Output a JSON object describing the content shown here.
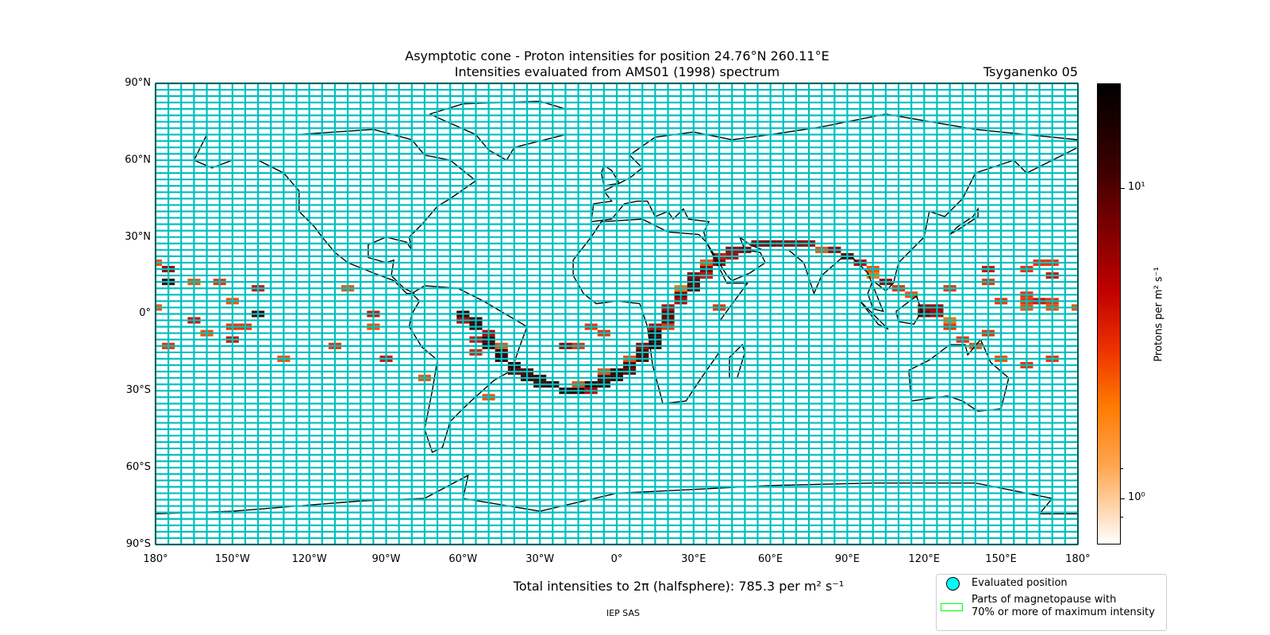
{
  "title_line1": "Asymptotic cone - Proton intensities for position 24.76°N 260.11°E",
  "title_line2": "Intensities evaluated from AMS01 (1998) spectrum",
  "model_label": "Tsyganenko 05",
  "y_ticks": [
    "90°N",
    "60°N",
    "30°N",
    "0°",
    "30°S",
    "60°S",
    "90°S"
  ],
  "x_ticks": [
    "180°",
    "150°W",
    "120°W",
    "90°W",
    "60°W",
    "30°W",
    "0°",
    "30°E",
    "60°E",
    "90°E",
    "120°E",
    "150°E",
    "180°"
  ],
  "colorbar": {
    "label": "Protons per m² s⁻¹",
    "tick_1": "10¹",
    "tick_0": "10⁰",
    "range": [
      0.71,
      21.8
    ],
    "scale": "log"
  },
  "footer_text": "Total intensities to 2π (halfsphere): 785.3 per m² s⁻¹",
  "credit": "IEP SAS",
  "legend": {
    "evaluated": "Evaluated position",
    "magnetopause_1": "Parts of magnetopause with",
    "magnetopause_2": "70% or more of maximum intensity"
  },
  "colors": {
    "grid": "#00bfbf",
    "legend_circle": "#00ffff",
    "legend_rect": "#00ff00"
  },
  "chart_data": {
    "type": "heatmap",
    "cell_size_deg": [
      5,
      2.5
    ],
    "xlim": [
      -180,
      180
    ],
    "ylim": [
      -90,
      90
    ],
    "cells": [
      [
        -175,
        17.5,
        6
      ],
      [
        -175,
        12.5,
        12
      ],
      [
        -175,
        -12.5,
        3
      ],
      [
        -180,
        20,
        2.5
      ],
      [
        -180,
        2.5,
        2.5
      ],
      [
        -165,
        12.5,
        2.5
      ],
      [
        -165,
        -2.5,
        4
      ],
      [
        -160,
        -7.5,
        2.5
      ],
      [
        -155,
        12.5,
        3
      ],
      [
        -150,
        5,
        2.5
      ],
      [
        -150,
        -5,
        3
      ],
      [
        -145,
        -5,
        3
      ],
      [
        -150,
        -10,
        4
      ],
      [
        -140,
        10,
        4
      ],
      [
        -140,
        0,
        12
      ],
      [
        -130,
        -17.5,
        2.5
      ],
      [
        -110,
        -12.5,
        3
      ],
      [
        -105,
        10,
        2.5
      ],
      [
        -95,
        0,
        4
      ],
      [
        -95,
        -5,
        2.5
      ],
      [
        -90,
        -17.5,
        4
      ],
      [
        -75,
        -25,
        2.5
      ],
      [
        -60,
        0,
        12
      ],
      [
        -60,
        -2.5,
        5
      ],
      [
        -55,
        -2.5,
        12
      ],
      [
        -55,
        -5,
        12
      ],
      [
        -55,
        -10,
        4
      ],
      [
        -55,
        -15,
        3.5
      ],
      [
        -50,
        -7.5,
        5
      ],
      [
        -50,
        -10,
        12
      ],
      [
        -50,
        -12.5,
        12
      ],
      [
        -45,
        -12.5,
        2.5
      ],
      [
        -45,
        -15,
        12
      ],
      [
        -45,
        -17.5,
        12
      ],
      [
        -50,
        -32.5,
        2.5
      ],
      [
        -40,
        -20,
        12
      ],
      [
        -40,
        -22.5,
        9
      ],
      [
        -35,
        -22.5,
        10
      ],
      [
        -35,
        -25,
        12
      ],
      [
        -30,
        -25,
        12
      ],
      [
        -30,
        -27.5,
        12
      ],
      [
        -25,
        -27.5,
        15
      ],
      [
        -20,
        -30,
        15
      ],
      [
        -15,
        -30,
        15
      ],
      [
        -10,
        -30,
        5
      ],
      [
        -15,
        -27.5,
        2.5
      ],
      [
        -10,
        -27.5,
        15
      ],
      [
        -5,
        -27.5,
        15
      ],
      [
        -5,
        -25,
        10
      ],
      [
        -5,
        -22.5,
        2.5
      ],
      [
        0,
        -22.5,
        12
      ],
      [
        0,
        -25,
        12
      ],
      [
        5,
        -22.5,
        9
      ],
      [
        5,
        -20,
        10
      ],
      [
        5,
        -17.5,
        2.5
      ],
      [
        10,
        -17.5,
        10
      ],
      [
        10,
        -15,
        10
      ],
      [
        10,
        -12.5,
        6
      ],
      [
        15,
        -12.5,
        12
      ],
      [
        15,
        -10,
        12
      ],
      [
        15,
        -7.5,
        12
      ],
      [
        15,
        -5,
        5
      ],
      [
        20,
        -5,
        3
      ],
      [
        20,
        -2.5,
        8
      ],
      [
        20,
        0,
        9
      ],
      [
        20,
        2.5,
        5
      ],
      [
        25,
        5,
        5
      ],
      [
        25,
        7.5,
        8
      ],
      [
        25,
        10,
        2
      ],
      [
        30,
        10,
        10
      ],
      [
        30,
        12.5,
        9
      ],
      [
        30,
        15,
        7
      ],
      [
        35,
        15,
        4
      ],
      [
        35,
        17.5,
        7
      ],
      [
        35,
        20,
        2.5
      ],
      [
        40,
        20,
        7
      ],
      [
        40,
        22.5,
        4
      ],
      [
        40,
        2.5,
        3
      ],
      [
        45,
        22.5,
        5
      ],
      [
        45,
        25,
        6
      ],
      [
        50,
        25,
        7
      ],
      [
        55,
        27.5,
        7
      ],
      [
        60,
        27.5,
        8
      ],
      [
        65,
        27.5,
        7
      ],
      [
        70,
        27.5,
        7
      ],
      [
        75,
        27.5,
        6
      ],
      [
        80,
        25,
        2.5
      ],
      [
        85,
        25,
        6
      ],
      [
        90,
        22.5,
        9
      ],
      [
        95,
        20,
        5
      ],
      [
        100,
        17.5,
        2.5
      ],
      [
        100,
        15,
        2
      ],
      [
        105,
        12.5,
        6
      ],
      [
        110,
        10,
        3
      ],
      [
        115,
        7.5,
        2.5
      ],
      [
        120,
        2.5,
        6
      ],
      [
        125,
        2.5,
        6
      ],
      [
        120,
        0,
        8
      ],
      [
        125,
        0,
        5
      ],
      [
        130,
        -2.5,
        2
      ],
      [
        130,
        -5,
        3
      ],
      [
        135,
        -10,
        3
      ],
      [
        140,
        -12.5,
        2.5
      ],
      [
        145,
        -7.5,
        3
      ],
      [
        130,
        10,
        3
      ],
      [
        145,
        17.5,
        4
      ],
      [
        145,
        12.5,
        3
      ],
      [
        150,
        5,
        3
      ],
      [
        160,
        5,
        3
      ],
      [
        165,
        5,
        4
      ],
      [
        160,
        2.5,
        2.5
      ],
      [
        170,
        2.5,
        2.5
      ],
      [
        170,
        5,
        3
      ],
      [
        160,
        7.5,
        3
      ],
      [
        165,
        20,
        3
      ],
      [
        170,
        20,
        3
      ],
      [
        160,
        17.5,
        3
      ],
      [
        170,
        15,
        4
      ],
      [
        150,
        -17.5,
        2.5
      ],
      [
        160,
        -20,
        3
      ],
      [
        170,
        -17.5,
        3
      ],
      [
        180,
        2.5,
        2.5
      ],
      [
        -15,
        -12.5,
        3
      ],
      [
        -20,
        -12.5,
        6
      ],
      [
        -10,
        -5,
        3
      ],
      [
        -5,
        -7.5,
        3
      ]
    ]
  }
}
